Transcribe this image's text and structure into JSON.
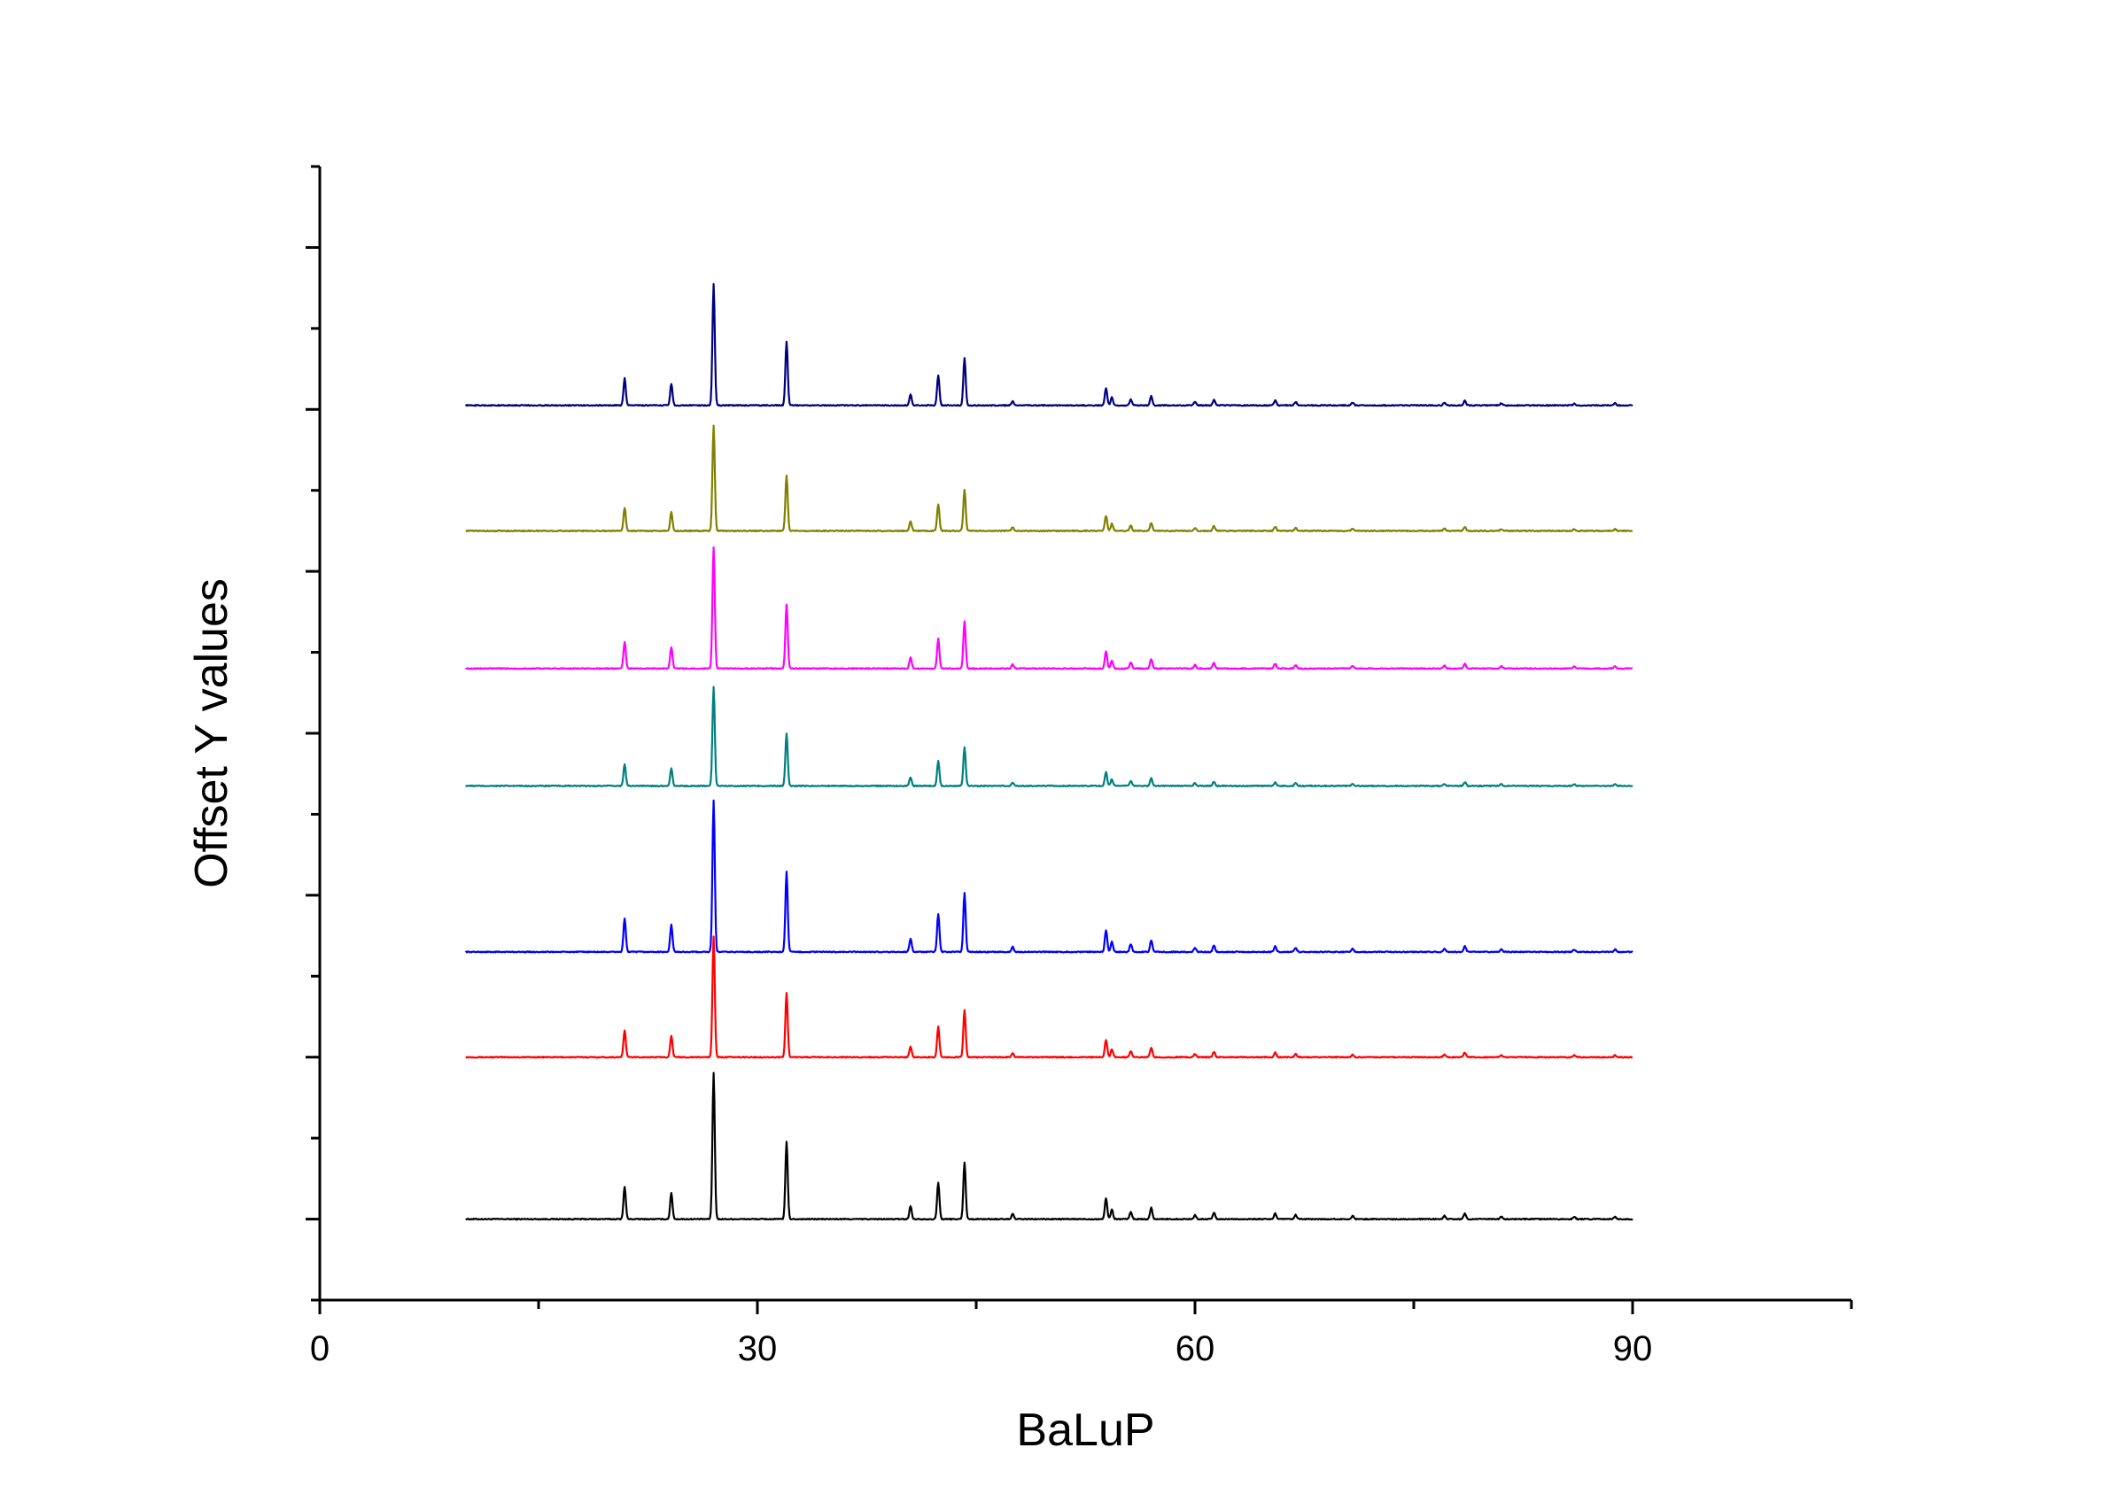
{
  "chart_data": {
    "type": "line",
    "title": "",
    "xlabel": "BaLuP",
    "ylabel": "Offset Y values",
    "xlim": [
      0,
      105
    ],
    "ylim": [
      0,
      14
    ],
    "x_ticks": [
      0,
      30,
      60,
      90
    ],
    "x_minor_ticks": [
      15,
      45,
      75,
      105
    ],
    "y_major_ticks": [
      1,
      3,
      5,
      7,
      9,
      11,
      13
    ],
    "y_minor_ticks": [
      0,
      2,
      4,
      6,
      8,
      10,
      12,
      14
    ],
    "grid": false,
    "legend": "none",
    "x_range": [
      10,
      90
    ],
    "peaks": [
      {
        "x": 20.9,
        "h": 0.4
      },
      {
        "x": 24.1,
        "h": 0.32
      },
      {
        "x": 27.0,
        "h": 1.8
      },
      {
        "x": 32.0,
        "h": 0.95
      },
      {
        "x": 40.5,
        "h": 0.16
      },
      {
        "x": 42.4,
        "h": 0.45
      },
      {
        "x": 44.2,
        "h": 0.7
      },
      {
        "x": 47.5,
        "h": 0.06
      },
      {
        "x": 53.9,
        "h": 0.26
      },
      {
        "x": 54.3,
        "h": 0.12
      },
      {
        "x": 55.6,
        "h": 0.09
      },
      {
        "x": 57.0,
        "h": 0.14
      },
      {
        "x": 60.0,
        "h": 0.05
      },
      {
        "x": 61.3,
        "h": 0.08
      },
      {
        "x": 65.5,
        "h": 0.07
      },
      {
        "x": 66.9,
        "h": 0.05
      },
      {
        "x": 70.8,
        "h": 0.04
      },
      {
        "x": 77.1,
        "h": 0.04
      },
      {
        "x": 78.5,
        "h": 0.07
      },
      {
        "x": 81.0,
        "h": 0.03
      },
      {
        "x": 86.0,
        "h": 0.03
      },
      {
        "x": 88.8,
        "h": 0.03
      }
    ],
    "series": [
      {
        "color": "#000000",
        "baseline": 1.0,
        "scale": 1.0
      },
      {
        "color": "#ff0000",
        "baseline": 3.0,
        "scale": 0.83
      },
      {
        "color": "#0000ff",
        "baseline": 4.3,
        "scale": 1.04
      },
      {
        "color": "#008080",
        "baseline": 6.35,
        "scale": 0.68
      },
      {
        "color": "#ff00ff",
        "baseline": 7.8,
        "scale": 0.83
      },
      {
        "color": "#808000",
        "baseline": 9.5,
        "scale": 0.72
      },
      {
        "color": "#000080",
        "baseline": 11.05,
        "scale": 0.83
      }
    ]
  }
}
